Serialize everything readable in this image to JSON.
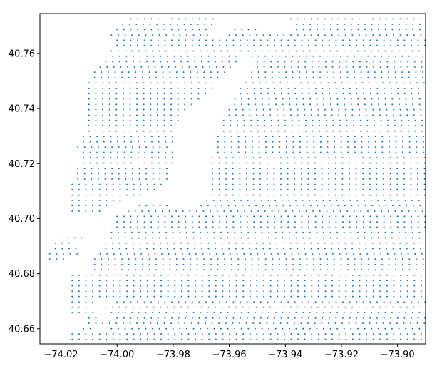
{
  "chart_data": {
    "type": "scatter",
    "title": "",
    "xlabel": "",
    "ylabel": "",
    "xlim": [
      -74.0275,
      -73.89
    ],
    "ylim": [
      40.6545,
      40.7745
    ],
    "grid": false,
    "marker_color": "#1f77b4",
    "x_ticks": [
      -74.02,
      -74.0,
      -73.98,
      -73.96,
      -73.94,
      -73.92,
      -73.9
    ],
    "x_tick_labels": [
      "−74.02",
      "−74.00",
      "−73.98",
      "−73.96",
      "−73.94",
      "−73.92",
      "−73.90"
    ],
    "y_ticks": [
      40.66,
      40.68,
      40.7,
      40.72,
      40.74,
      40.76
    ],
    "y_tick_labels": [
      "40.66",
      "40.68",
      "40.70",
      "40.72",
      "40.74",
      "40.76"
    ],
    "grid_spacing": {
      "dx": 0.00244,
      "dy": 0.00194
    },
    "series": [
      {
        "rows": [
          {
            "y": 40.7726,
            "x_ranges": [
              [
                -73.9951,
                -73.9642
              ],
              [
                -73.9381,
                -73.8902
              ]
            ]
          },
          {
            "y": 40.7706,
            "x_ranges": [
              [
                -73.998,
                -73.966
              ],
              [
                -73.936,
                -73.8902
              ]
            ]
          },
          {
            "y": 40.7687,
            "x_ranges": [
              [
                -74.0,
                -73.966
              ],
              [
                -73.958,
                -73.95
              ],
              [
                -73.936,
                -73.8902
              ]
            ]
          },
          {
            "y": 40.7667,
            "x_ranges": [
              [
                -74.002,
                -73.966
              ],
              [
                -73.96,
                -73.8902
              ]
            ]
          },
          {
            "y": 40.7648,
            "x_ranges": [
              [
                -74.0,
                -73.8902
              ]
            ]
          },
          {
            "y": 40.7629,
            "x_ranges": [
              [
                -74.0,
                -73.8902
              ]
            ]
          },
          {
            "y": 40.7609,
            "x_ranges": [
              [
                -74.002,
                -73.8902
              ]
            ]
          },
          {
            "y": 40.759,
            "x_ranges": [
              [
                -74.004,
                -73.956
              ],
              [
                -73.952,
                -73.8902
              ]
            ]
          },
          {
            "y": 40.757,
            "x_ranges": [
              [
                -74.004,
                -73.956
              ],
              [
                -73.95,
                -73.8902
              ]
            ]
          },
          {
            "y": 40.7551,
            "x_ranges": [
              [
                -74.006,
                -73.958
              ],
              [
                -73.95,
                -73.8902
              ]
            ]
          },
          {
            "y": 40.7532,
            "x_ranges": [
              [
                -74.008,
                -73.96
              ],
              [
                -73.952,
                -73.8902
              ]
            ]
          },
          {
            "y": 40.7512,
            "x_ranges": [
              [
                -74.008,
                -73.962
              ],
              [
                -73.952,
                -73.8902
              ]
            ]
          },
          {
            "y": 40.7493,
            "x_ranges": [
              [
                -74.01,
                -73.964
              ],
              [
                -73.954,
                -73.8902
              ]
            ]
          },
          {
            "y": 40.7473,
            "x_ranges": [
              [
                -74.01,
                -73.966
              ],
              [
                -73.956,
                -73.8902
              ]
            ]
          },
          {
            "y": 40.7454,
            "x_ranges": [
              [
                -74.01,
                -73.968
              ],
              [
                -73.956,
                -73.8902
              ]
            ]
          },
          {
            "y": 40.7435,
            "x_ranges": [
              [
                -74.01,
                -73.97
              ],
              [
                -73.958,
                -73.8902
              ]
            ]
          },
          {
            "y": 40.7415,
            "x_ranges": [
              [
                -74.01,
                -73.972
              ],
              [
                -73.958,
                -73.8902
              ]
            ]
          },
          {
            "y": 40.7396,
            "x_ranges": [
              [
                -74.01,
                -73.974
              ],
              [
                -73.96,
                -73.8902
              ]
            ]
          },
          {
            "y": 40.7376,
            "x_ranges": [
              [
                -74.01,
                -73.976
              ],
              [
                -73.96,
                -73.8902
              ]
            ]
          },
          {
            "y": 40.7357,
            "x_ranges": [
              [
                -74.01,
                -73.978
              ],
              [
                -73.962,
                -73.8902
              ]
            ]
          },
          {
            "y": 40.7338,
            "x_ranges": [
              [
                -74.01,
                -73.98
              ],
              [
                -73.962,
                -73.8902
              ]
            ]
          },
          {
            "y": 40.7318,
            "x_ranges": [
              [
                -74.01,
                -73.98
              ],
              [
                -73.962,
                -73.8902
              ]
            ]
          },
          {
            "y": 40.7299,
            "x_ranges": [
              [
                -74.012,
                -73.98
              ],
              [
                -73.964,
                -73.8902
              ]
            ]
          },
          {
            "y": 40.7279,
            "x_ranges": [
              [
                -74.012,
                -73.98
              ],
              [
                -73.964,
                -73.8902
              ]
            ]
          },
          {
            "y": 40.726,
            "x_ranges": [
              [
                -74.014,
                -73.98
              ],
              [
                -73.964,
                -73.8902
              ]
            ]
          },
          {
            "y": 40.7241,
            "x_ranges": [
              [
                -74.012,
                -73.98
              ],
              [
                -73.964,
                -73.8902
              ]
            ]
          },
          {
            "y": 40.7221,
            "x_ranges": [
              [
                -74.012,
                -73.98
              ],
              [
                -73.966,
                -73.8902
              ]
            ]
          },
          {
            "y": 40.7202,
            "x_ranges": [
              [
                -74.012,
                -73.98
              ],
              [
                -73.966,
                -73.8902
              ]
            ]
          },
          {
            "y": 40.7182,
            "x_ranges": [
              [
                -74.014,
                -73.98
              ],
              [
                -73.966,
                -73.8902
              ]
            ]
          },
          {
            "y": 40.7163,
            "x_ranges": [
              [
                -74.014,
                -73.98
              ],
              [
                -73.966,
                -73.8902
              ]
            ]
          },
          {
            "y": 40.7144,
            "x_ranges": [
              [
                -74.014,
                -73.982
              ],
              [
                -73.966,
                -73.8902
              ]
            ]
          },
          {
            "y": 40.7124,
            "x_ranges": [
              [
                -74.016,
                -73.984
              ],
              [
                -73.966,
                -73.8902
              ]
            ]
          },
          {
            "y": 40.7105,
            "x_ranges": [
              [
                -74.016,
                -73.986
              ],
              [
                -73.966,
                -73.8902
              ]
            ]
          },
          {
            "y": 40.7085,
            "x_ranges": [
              [
                -74.016,
                -73.99
              ],
              [
                -73.966,
                -73.8902
              ]
            ]
          },
          {
            "y": 40.7066,
            "x_ranges": [
              [
                -74.016,
                -73.998
              ],
              [
                -73.968,
                -73.8902
              ]
            ]
          },
          {
            "y": 40.7047,
            "x_ranges": [
              [
                -74.016,
                -74.002
              ],
              [
                -73.992,
                -73.98
              ],
              [
                -73.97,
                -73.8902
              ]
            ]
          },
          {
            "y": 40.7027,
            "x_ranges": [
              [
                -74.016,
                -74.006
              ],
              [
                -73.996,
                -73.8902
              ]
            ]
          },
          {
            "y": 40.7008,
            "x_ranges": [
              [
                -74.0,
                -73.8902
              ]
            ]
          },
          {
            "y": 40.6988,
            "x_ranges": [
              [
                -74.0,
                -73.8902
              ]
            ]
          },
          {
            "y": 40.6969,
            "x_ranges": [
              [
                -74.0,
                -73.8902
              ]
            ]
          },
          {
            "y": 40.695,
            "x_ranges": [
              [
                -74.002,
                -73.8902
              ]
            ]
          },
          {
            "y": 40.693,
            "x_ranges": [
              [
                -74.02,
                -74.012
              ],
              [
                -74.002,
                -73.8902
              ]
            ]
          },
          {
            "y": 40.6911,
            "x_ranges": [
              [
                -74.022,
                -74.016
              ],
              [
                -74.004,
                -73.8902
              ]
            ]
          },
          {
            "y": 40.6891,
            "x_ranges": [
              [
                -74.022,
                -74.014
              ],
              [
                -74.004,
                -73.8902
              ]
            ]
          },
          {
            "y": 40.6872,
            "x_ranges": [
              [
                -74.024,
                -74.014
              ],
              [
                -74.006,
                -73.8902
              ]
            ]
          },
          {
            "y": 40.6853,
            "x_ranges": [
              [
                -74.024,
                -74.018
              ],
              [
                -74.008,
                -73.8902
              ]
            ]
          },
          {
            "y": 40.6833,
            "x_ranges": [
              [
                -74.008,
                -73.8902
              ]
            ]
          },
          {
            "y": 40.6814,
            "x_ranges": [
              [
                -74.008,
                -73.8902
              ]
            ]
          },
          {
            "y": 40.6794,
            "x_ranges": [
              [
                -74.016,
                -73.8902
              ]
            ]
          },
          {
            "y": 40.6775,
            "x_ranges": [
              [
                -74.016,
                -73.8902
              ]
            ]
          },
          {
            "y": 40.6756,
            "x_ranges": [
              [
                -74.016,
                -73.8902
              ]
            ]
          },
          {
            "y": 40.6736,
            "x_ranges": [
              [
                -74.016,
                -73.8902
              ]
            ]
          },
          {
            "y": 40.6717,
            "x_ranges": [
              [
                -74.016,
                -73.8902
              ]
            ]
          },
          {
            "y": 40.6697,
            "x_ranges": [
              [
                -74.016,
                -74.008
              ],
              [
                -74.0,
                -73.8902
              ]
            ]
          },
          {
            "y": 40.6678,
            "x_ranges": [
              [
                -74.016,
                -74.01
              ],
              [
                -74.004,
                -73.8902
              ]
            ]
          },
          {
            "y": 40.6659,
            "x_ranges": [
              [
                -74.016,
                -74.008
              ],
              [
                -74.002,
                -73.8902
              ]
            ]
          },
          {
            "y": 40.6639,
            "x_ranges": [
              [
                -74.01,
                -74.006
              ],
              [
                -74.0,
                -73.8902
              ]
            ]
          },
          {
            "y": 40.662,
            "x_ranges": [
              [
                -74.01,
                -73.8902
              ]
            ]
          },
          {
            "y": 40.66,
            "x_ranges": [
              [
                -74.012,
                -74.008
              ],
              [
                -74.002,
                -73.8902
              ]
            ]
          },
          {
            "y": 40.6581,
            "x_ranges": [
              [
                -74.016,
                -73.8902
              ]
            ]
          },
          {
            "y": 40.6562,
            "x_ranges": [
              [
                -74.016,
                -73.8902
              ]
            ]
          }
        ]
      }
    ]
  }
}
